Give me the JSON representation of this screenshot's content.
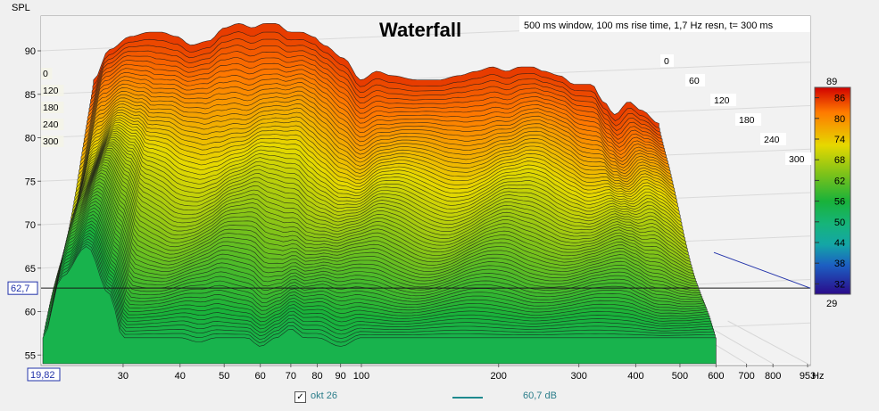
{
  "chart_data": {
    "type": "area",
    "title": "Waterfall",
    "subtitle": "500 ms window, 100 ms rise time,  1,7 Hz resn, t= 300 ms",
    "ylabel": "SPL",
    "xunit": "Hz",
    "x_scale": "log",
    "xlim": [
      19.82,
      953
    ],
    "ylim": [
      54,
      94
    ],
    "x_ticks": [
      "30",
      "40",
      "50",
      "60",
      "70",
      "80",
      "90",
      "100",
      "200",
      "300",
      "400",
      "500",
      "600",
      "700",
      "800",
      "953"
    ],
    "x_tick_values": [
      30,
      40,
      50,
      60,
      70,
      80,
      90,
      100,
      200,
      300,
      400,
      500,
      600,
      700,
      800,
      953
    ],
    "y_ticks": [
      55,
      60,
      65,
      70,
      75,
      80,
      85,
      90
    ],
    "cursor_x_label": "19,82",
    "cursor_y_label": "62,7",
    "cursor_y": 62.7,
    "time_axis_labels": [
      "0",
      "60",
      "120",
      "180",
      "240",
      "300"
    ],
    "time_axis_left_labels": [
      "0",
      "120",
      "180",
      "240",
      "300"
    ],
    "colorbar": {
      "max_label": "89",
      "min_label": "29",
      "ticks": [
        "86",
        "80",
        "74",
        "68",
        "62",
        "56",
        "50",
        "44",
        "38",
        "32"
      ],
      "tick_values": [
        86,
        80,
        74,
        68,
        62,
        56,
        50,
        44,
        38,
        32
      ],
      "range": [
        29,
        89
      ]
    },
    "spectrum_t0": {
      "x": [
        20,
        22,
        25,
        28,
        30,
        33,
        36,
        40,
        44,
        48,
        52,
        56,
        60,
        65,
        70,
        75,
        80,
        90,
        100,
        110,
        120,
        140,
        160,
        180,
        200,
        220,
        240,
        260,
        280,
        300,
        330,
        360,
        400,
        430,
        460,
        500,
        540,
        600
      ],
      "values": [
        83,
        86.5,
        88,
        88.5,
        88.5,
        88,
        87,
        87.5,
        89,
        89.5,
        89,
        89.5,
        89.5,
        88.5,
        88.5,
        88,
        87,
        85.5,
        83,
        84,
        83.5,
        83,
        83,
        83.5,
        84,
        84.5,
        84,
        84.5,
        84.5,
        84,
        83.5,
        82.5,
        82.5,
        80.5,
        79,
        80.5,
        79.5,
        78
      ]
    },
    "spectrum_t300": {
      "x": [
        20,
        22,
        25,
        28,
        30,
        33,
        36,
        40,
        44,
        48,
        52,
        56,
        60,
        65,
        70,
        75,
        80,
        90,
        100,
        110,
        120,
        140,
        160,
        180,
        200,
        220,
        240,
        260,
        280,
        300,
        330,
        360,
        400,
        430,
        460,
        500,
        540,
        600
      ],
      "values": [
        57,
        64,
        67.5,
        62,
        57,
        57,
        57,
        57,
        56.5,
        57,
        57,
        57,
        56,
        57,
        58,
        57,
        57,
        56,
        57,
        57,
        57,
        57,
        57,
        57,
        57,
        57,
        57,
        57,
        57,
        57,
        57,
        57,
        57,
        57,
        57,
        57,
        57,
        57
      ]
    },
    "series": [
      {
        "name": "okt 26",
        "value_label": "60,7 dB",
        "color": "#1e8a8e",
        "checked": true
      }
    ]
  }
}
